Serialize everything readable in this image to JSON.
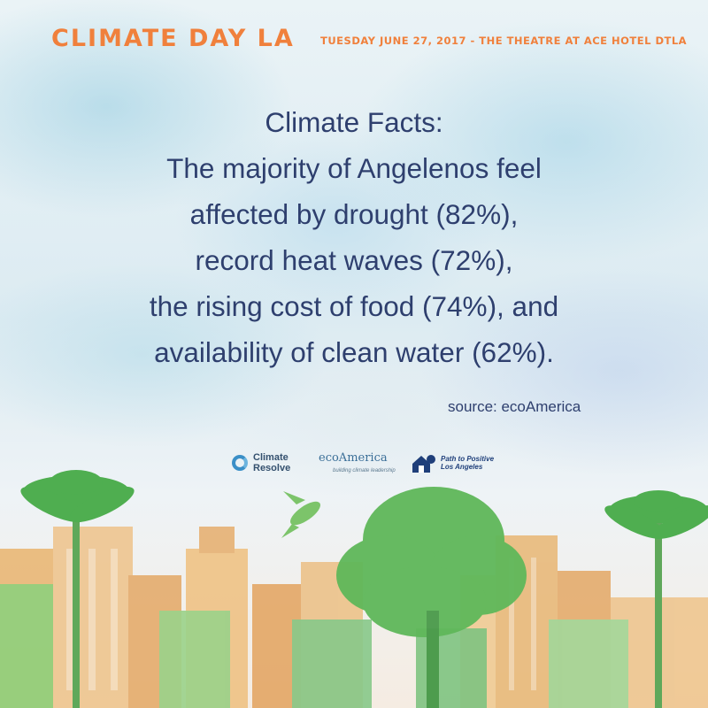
{
  "header": {
    "title": "CLIMATE DAY LA",
    "event_details": "TUESDAY JUNE 27, 2017 - THE THEATRE AT ACE HOTEL DTLA"
  },
  "facts": {
    "lines": [
      "Climate Facts:",
      "The majority of Angelenos feel",
      "affected by drought (82%),",
      "record heat waves (72%),",
      "the rising cost of food (74%), and",
      "availability of clean water (62%)."
    ],
    "source": "source: ecoAmerica"
  },
  "logos": {
    "climate_resolve": {
      "line1": "Climate",
      "line2": "Resolve",
      "icon": "climate-resolve-icon"
    },
    "ecoamerica": {
      "name": "ecoAmerica",
      "tagline": "building climate leadership"
    },
    "path_to_positive": {
      "line1": "Path to Positive",
      "line2": "Los Angeles",
      "icon": "house-icon"
    }
  },
  "colors": {
    "accent_orange": "#f0803c",
    "text_navy": "#2e3f6e",
    "green": "#5fb85a",
    "gold": "#e8b56a"
  }
}
